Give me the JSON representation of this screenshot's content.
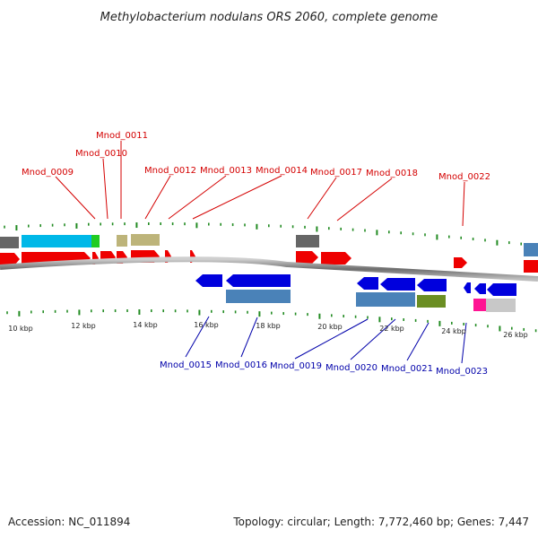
{
  "title": "Methylobacterium nodulans ORS 2060, complete genome",
  "footer": {
    "accession": "Accession: NC_011894",
    "summary": "Topology: circular; Length: 7,772,460 bp; Genes: 7,447"
  },
  "kbp_labels": [
    "10 kbp",
    "12 kbp",
    "14 kbp",
    "16 kbp",
    "18 kbp",
    "20 kbp",
    "22 kbp",
    "24 kbp",
    "26 kbp"
  ],
  "top_genes": [
    "Mnod_0009",
    "Mnod_0010",
    "Mnod_0011",
    "Mnod_0012",
    "Mnod_0013",
    "Mnod_0014",
    "Mnod_0017",
    "Mnod_0018",
    "Mnod_0022"
  ],
  "bottom_genes": [
    "Mnod_0015",
    "Mnod_0016",
    "Mnod_0019",
    "Mnod_0020",
    "Mnod_0021",
    "Mnod_0023"
  ],
  "colors": {
    "forward_gene": "#ee0000",
    "reverse_gene": "#0000dd",
    "top_label": "#d40000",
    "bottom_label": "#0000aa",
    "tick": "#228b22",
    "backbone": "#888888",
    "cyan_feature": "#00b8e8",
    "khaki_feature": "#bdb47a",
    "gray_feature": "#666666",
    "steel_feature": "#4a82b8",
    "olive_feature": "#6b8e23",
    "pink_feature": "#ff1493",
    "lightgray_feature": "#c8c8c8",
    "green_feature": "#22cc22"
  }
}
